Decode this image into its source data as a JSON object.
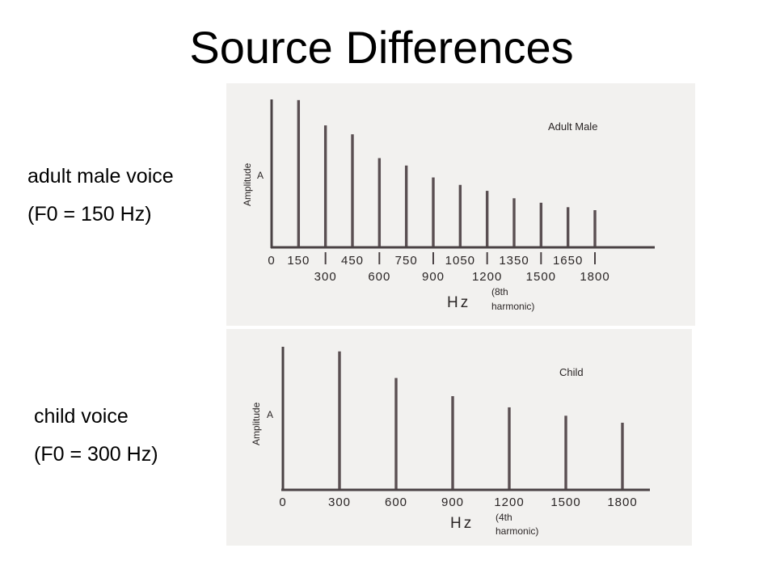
{
  "title": "Source Differences",
  "captions": {
    "adult": {
      "line1": "adult male voice",
      "line2": "(F0 = 150 Hz)"
    },
    "child": {
      "line1": "child voice",
      "line2": "(F0 = 300 Hz)"
    }
  },
  "colors": {
    "bars": "#5a4f52",
    "axis": "#4a4244",
    "panel_bg": "#f2f1ef",
    "text": "#2a2525"
  },
  "chart_data": [
    {
      "type": "bar",
      "title": "Adult Male",
      "ylabel": "Amplitude",
      "ylabel_symbol": "A",
      "xlabel": "Hz",
      "annotation": {
        "line1": "(8th",
        "line2": "harmonic)"
      },
      "x_unit": "Hz",
      "xlim": [
        0,
        1800
      ],
      "ylim": [
        0,
        1
      ],
      "categories": [
        150,
        300,
        450,
        600,
        750,
        900,
        1050,
        1200,
        1350,
        1500,
        1650,
        1800
      ],
      "values": [
        0.99,
        0.82,
        0.76,
        0.6,
        0.55,
        0.47,
        0.42,
        0.38,
        0.33,
        0.3,
        0.27,
        0.25
      ],
      "tick_labels_upper": [
        "0",
        "150",
        "450",
        "750",
        "1050",
        "1350",
        "1650"
      ],
      "tick_labels_lower": [
        "300",
        "600",
        "900",
        "1200",
        "1500",
        "1800"
      ]
    },
    {
      "type": "bar",
      "title": "Child",
      "ylabel": "Amplitude",
      "ylabel_symbol": "A",
      "xlabel": "Hz",
      "annotation": {
        "line1": "(4th",
        "line2": "harmonic)"
      },
      "x_unit": "Hz",
      "xlim": [
        0,
        1800
      ],
      "ylim": [
        0,
        1
      ],
      "categories": [
        300,
        600,
        900,
        1200,
        1500,
        1800
      ],
      "values": [
        0.99,
        0.8,
        0.67,
        0.59,
        0.53,
        0.48
      ],
      "tick_labels": [
        "0",
        "300",
        "600",
        "900",
        "1200",
        "1500",
        "1800"
      ]
    }
  ]
}
